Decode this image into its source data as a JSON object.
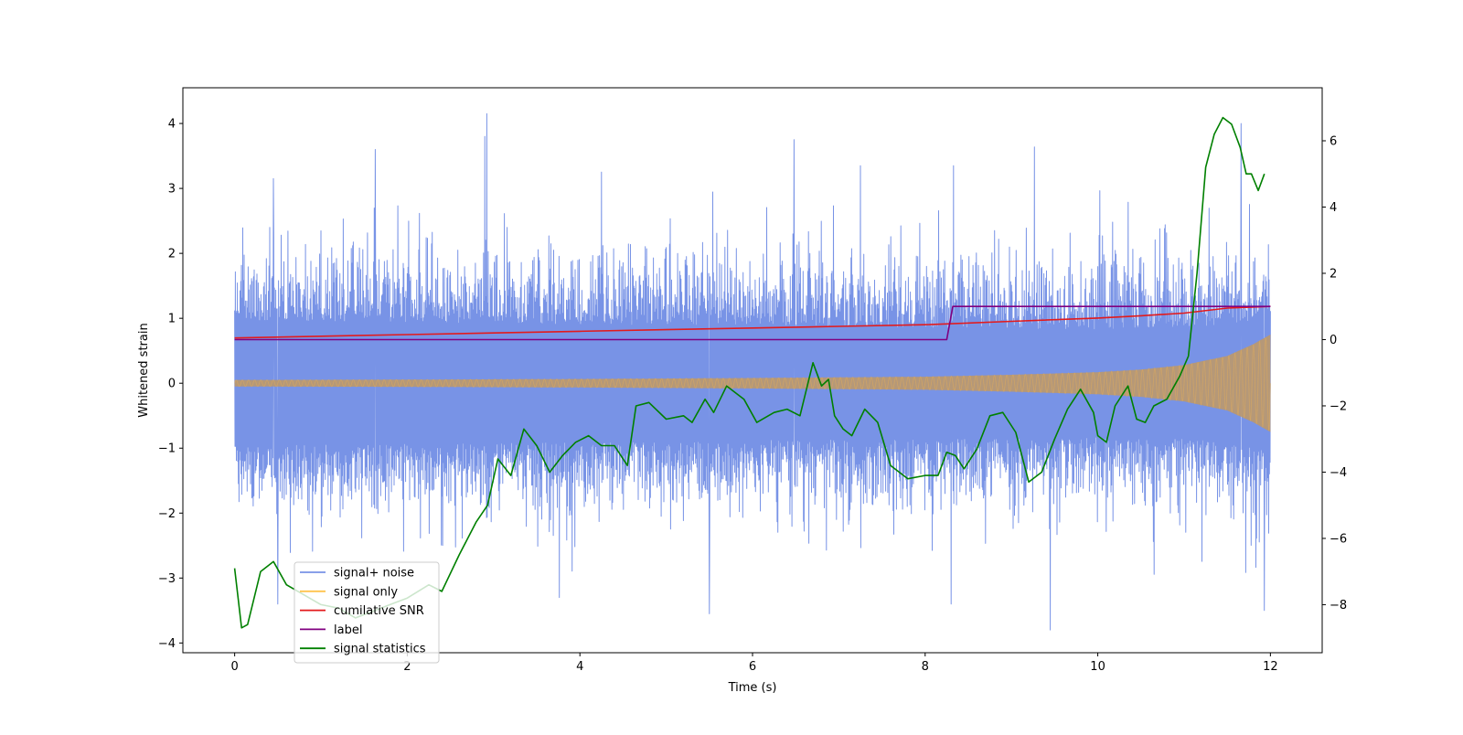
{
  "chart_data": {
    "type": "line",
    "xlabel": "Time (s)",
    "ylabel": "Whitened strain",
    "xlim": [
      -0.6,
      12.6
    ],
    "ylim": [
      -4.15,
      4.55
    ],
    "y2lim": [
      -9.45,
      7.6
    ],
    "x_ticks": [
      0,
      2,
      4,
      6,
      8,
      10,
      12
    ],
    "y_ticks": [
      -4,
      -3,
      -2,
      -1,
      0,
      1,
      2,
      3,
      4
    ],
    "y2_ticks": [
      -8,
      -6,
      -4,
      -2,
      0,
      2,
      4,
      6
    ],
    "legend_position": "lower-left",
    "series": [
      {
        "name": "signal+ noise",
        "color": "#7893e6",
        "axis": "left",
        "samples_per_second": 256,
        "x_range": [
          0,
          12
        ],
        "envelope": [
          [
            0,
            0.95,
            -0.95
          ],
          [
            2,
            0.93,
            -0.93
          ],
          [
            4,
            0.9,
            -0.9
          ],
          [
            6,
            0.87,
            -0.87
          ],
          [
            8,
            0.85,
            -0.85
          ],
          [
            10,
            0.82,
            -0.82
          ],
          [
            11,
            0.85,
            -0.85
          ],
          [
            11.5,
            0.9,
            -0.9
          ],
          [
            12,
            1.0,
            -1.0
          ]
        ],
        "peaks": [
          [
            2.92,
            4.15
          ],
          [
            1.63,
            3.6
          ],
          [
            2.9,
            3.8
          ],
          [
            6.48,
            3.75
          ],
          [
            8.33,
            3.35
          ],
          [
            11.66,
            4.0
          ],
          [
            9.45,
            -3.8
          ],
          [
            5.5,
            -3.55
          ],
          [
            3.76,
            -3.3
          ],
          [
            11.93,
            -3.5
          ],
          [
            0.5,
            -3.4
          ],
          [
            8.3,
            -3.4
          ],
          [
            0.45,
            3.15
          ],
          [
            4.25,
            3.25
          ],
          [
            7.25,
            3.35
          ]
        ]
      },
      {
        "name": "signal only",
        "color": "#ffc44d",
        "axis": "left",
        "envelope": [
          [
            0,
            0.05
          ],
          [
            2,
            0.055
          ],
          [
            4,
            0.065
          ],
          [
            6,
            0.08
          ],
          [
            8,
            0.1
          ],
          [
            9,
            0.13
          ],
          [
            10,
            0.17
          ],
          [
            10.5,
            0.21
          ],
          [
            11,
            0.28
          ],
          [
            11.5,
            0.42
          ],
          [
            11.8,
            0.6
          ],
          [
            12,
            0.75
          ]
        ]
      },
      {
        "name": "cumilative SNR",
        "color": "#e31a1c",
        "axis": "right",
        "x": [
          0,
          1,
          2,
          3,
          4,
          5,
          6,
          7,
          8,
          9,
          10,
          10.5,
          11,
          11.5,
          12
        ],
        "y": [
          0.05,
          0.1,
          0.15,
          0.2,
          0.25,
          0.3,
          0.35,
          0.4,
          0.45,
          0.55,
          0.65,
          0.72,
          0.8,
          0.95,
          1.0
        ]
      },
      {
        "name": "label",
        "color": "#800080",
        "axis": "right",
        "x": [
          0,
          8.25,
          8.32,
          12
        ],
        "y": [
          0,
          0,
          1,
          1
        ]
      },
      {
        "name": "signal statistics",
        "color": "#008000",
        "axis": "right",
        "x": [
          0,
          0.08,
          0.15,
          0.3,
          0.45,
          0.6,
          0.8,
          1.0,
          1.2,
          1.4,
          1.6,
          1.8,
          2.0,
          2.25,
          2.4,
          2.6,
          2.8,
          2.93,
          3.05,
          3.2,
          3.35,
          3.5,
          3.65,
          3.8,
          3.95,
          4.1,
          4.25,
          4.4,
          4.55,
          4.65,
          4.8,
          5.0,
          5.2,
          5.3,
          5.45,
          5.55,
          5.7,
          5.9,
          6.05,
          6.25,
          6.4,
          6.55,
          6.7,
          6.8,
          6.88,
          6.95,
          7.05,
          7.15,
          7.3,
          7.45,
          7.6,
          7.8,
          8.0,
          8.15,
          8.25,
          8.35,
          8.45,
          8.6,
          8.75,
          8.9,
          9.05,
          9.2,
          9.35,
          9.5,
          9.65,
          9.8,
          9.95,
          10.0,
          10.1,
          10.2,
          10.35,
          10.45,
          10.55,
          10.65,
          10.8,
          10.95,
          11.05,
          11.15,
          11.25,
          11.35,
          11.45,
          11.55,
          11.65,
          11.72,
          11.78,
          11.86,
          11.93
        ],
        "y": [
          -6.9,
          -8.7,
          -8.6,
          -7.0,
          -6.7,
          -7.4,
          -7.7,
          -8.0,
          -8.1,
          -8.4,
          -8.2,
          -8.0,
          -7.8,
          -7.4,
          -7.6,
          -6.5,
          -5.5,
          -5.0,
          -3.6,
          -4.1,
          -2.7,
          -3.2,
          -4.0,
          -3.5,
          -3.1,
          -2.9,
          -3.2,
          -3.2,
          -3.8,
          -2.0,
          -1.9,
          -2.4,
          -2.3,
          -2.5,
          -1.8,
          -2.2,
          -1.4,
          -1.8,
          -2.5,
          -2.2,
          -2.1,
          -2.3,
          -0.7,
          -1.4,
          -1.2,
          -2.3,
          -2.7,
          -2.9,
          -2.1,
          -2.5,
          -3.8,
          -4.2,
          -4.1,
          -4.1,
          -3.4,
          -3.5,
          -3.9,
          -3.3,
          -2.3,
          -2.2,
          -2.8,
          -4.3,
          -4.0,
          -3.0,
          -2.1,
          -1.5,
          -2.2,
          -2.9,
          -3.1,
          -2.0,
          -1.4,
          -2.4,
          -2.5,
          -2.0,
          -1.8,
          -1.1,
          -0.5,
          2.0,
          5.2,
          6.2,
          6.7,
          6.5,
          5.8,
          5.0,
          5.0,
          4.5,
          5.0
        ]
      }
    ]
  }
}
